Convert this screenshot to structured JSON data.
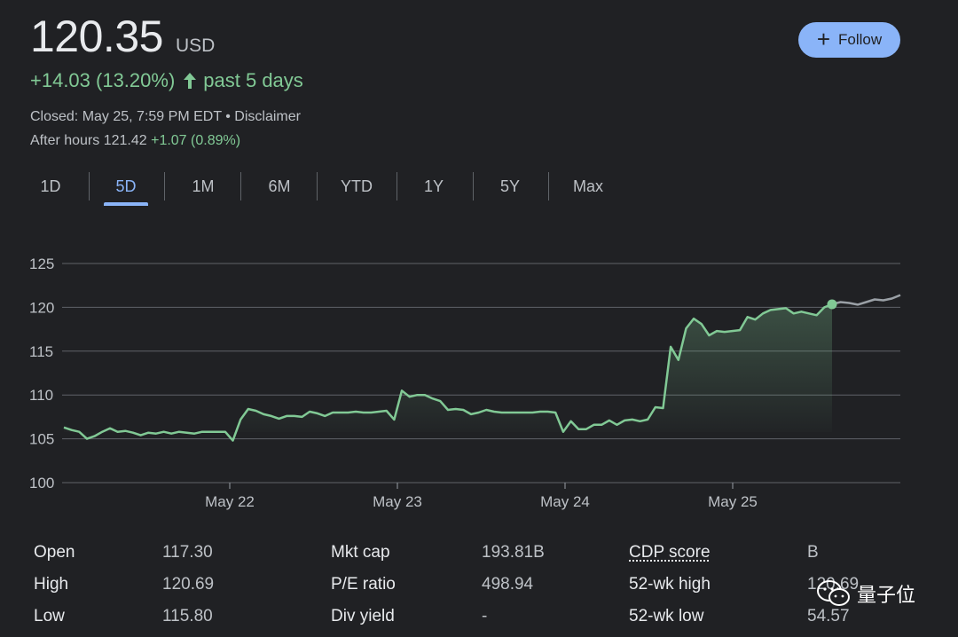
{
  "quote": {
    "price": "120.35",
    "currency": "USD",
    "change": "+14.03 (13.20%)",
    "period": "past 5 days",
    "closed": "Closed: May 25, 7:59 PM EDT",
    "disclaimer": "Disclaimer",
    "after_hours_label": "After hours 121.42",
    "after_hours_change": "+1.07 (0.89%)"
  },
  "follow_button": {
    "label": "Follow",
    "color": "#8ab4f8"
  },
  "tabs": [
    {
      "label": "1D"
    },
    {
      "label": "5D",
      "active": true
    },
    {
      "label": "1M"
    },
    {
      "label": "6M"
    },
    {
      "label": "YTD"
    },
    {
      "label": "1Y"
    },
    {
      "label": "5Y"
    },
    {
      "label": "Max"
    }
  ],
  "chart_data": {
    "type": "line",
    "ylim": [
      100,
      125
    ],
    "yticks": [
      "125",
      "120",
      "115",
      "110",
      "105",
      "100"
    ],
    "xtick_labels": [
      "May 22",
      "May 23",
      "May 24",
      "May 25"
    ],
    "grid": true,
    "series": [
      {
        "values": [
          106.3,
          106.0,
          105.8,
          105.0,
          105.3,
          105.8,
          106.2,
          105.8,
          105.9,
          105.7,
          105.4,
          105.7,
          105.6,
          105.8,
          105.6,
          105.8,
          105.7,
          105.6,
          105.8,
          105.8,
          105.8,
          105.8,
          104.8,
          107.2,
          108.4,
          108.2,
          107.8,
          107.6,
          107.3,
          107.6,
          107.6,
          107.5,
          108.1,
          107.9,
          107.6,
          108.0,
          108.0,
          108.0,
          108.1,
          108.0,
          108.0,
          108.1,
          108.2,
          107.2,
          110.5,
          109.8,
          110.0,
          110.0,
          109.6,
          109.3,
          108.3,
          108.4,
          108.3,
          107.8,
          108.0,
          108.3,
          108.1,
          108.0,
          108.0,
          108.0,
          108.0,
          108.0,
          108.1,
          108.1,
          108.0,
          105.8,
          107.0,
          106.1,
          106.1,
          106.6,
          106.6,
          107.1,
          106.6,
          107.1,
          107.2,
          107.0,
          107.2,
          108.6,
          108.5,
          115.5,
          114.0,
          117.6,
          118.7,
          118.1,
          116.8,
          117.3,
          117.2,
          117.3,
          117.4,
          118.9,
          118.6,
          119.3,
          119.7,
          119.8,
          119.9,
          119.3,
          119.5,
          119.3,
          119.1,
          120.0,
          120.35
        ],
        "color": "#81c995"
      },
      {
        "values": [
          120.35,
          120.6,
          120.5,
          120.3,
          120.6,
          120.9,
          120.8,
          121.0,
          121.4
        ],
        "color": "#9aa0a6"
      }
    ],
    "highlight_point": 120.35
  },
  "stats": {
    "col1": [
      {
        "label": "Open",
        "value": "117.30"
      },
      {
        "label": "High",
        "value": "120.69"
      },
      {
        "label": "Low",
        "value": "115.80"
      }
    ],
    "col2": [
      {
        "label": "Mkt cap",
        "value": "193.81B"
      },
      {
        "label": "P/E ratio",
        "value": "498.94"
      },
      {
        "label": "Div yield",
        "value": "-"
      }
    ],
    "col3": [
      {
        "label": "CDP score",
        "value": "B"
      },
      {
        "label": "52-wk high",
        "value": "120.69"
      },
      {
        "label": "52-wk low",
        "value": "54.57"
      }
    ]
  },
  "watermark": {
    "text": "量子位",
    "icon": "wechat-icon"
  },
  "colors": {
    "background": "#202124",
    "positive": "#81c995",
    "accent": "#8ab4f8"
  }
}
